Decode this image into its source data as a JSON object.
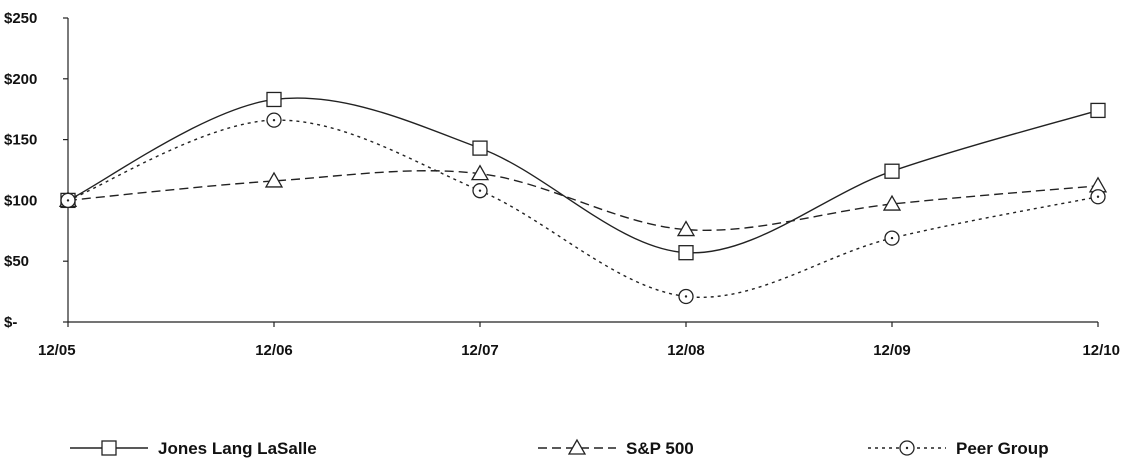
{
  "chart_data": {
    "type": "line",
    "title": "",
    "xlabel": "",
    "ylabel": "",
    "categories": [
      "12/05",
      "12/06",
      "12/07",
      "12/08",
      "12/09",
      "12/10"
    ],
    "ylim": [
      0,
      250
    ],
    "y_ticks": [
      {
        "value": 0,
        "label": "$-"
      },
      {
        "value": 50,
        "label": "$50"
      },
      {
        "value": 100,
        "label": "$100"
      },
      {
        "value": 150,
        "label": "$150"
      },
      {
        "value": 200,
        "label": "$200"
      },
      {
        "value": 250,
        "label": "$250"
      }
    ],
    "grid": false,
    "legend_position": "bottom",
    "series": [
      {
        "name": "Jones Lang LaSalle",
        "marker": "square",
        "dash": "solid",
        "values": [
          100,
          183,
          143,
          57,
          124,
          174
        ]
      },
      {
        "name": "S&P 500",
        "marker": "triangle",
        "dash": "dashed",
        "values": [
          100,
          116,
          122,
          76,
          97,
          112
        ]
      },
      {
        "name": "Peer Group",
        "marker": "circle",
        "dash": "dotted",
        "values": [
          100,
          166,
          108,
          21,
          69,
          103
        ]
      }
    ]
  }
}
